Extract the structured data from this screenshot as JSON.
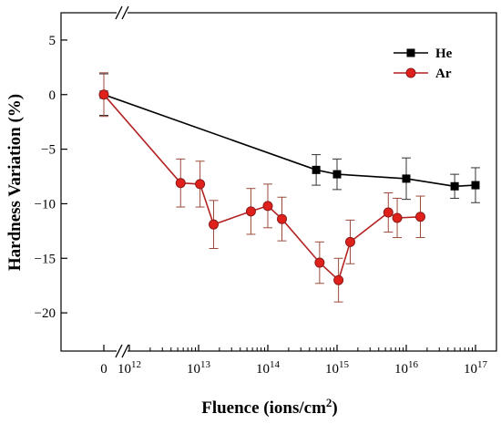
{
  "chart_data": {
    "type": "line",
    "xlabel": "Fluence (ions/cm",
    "xlabel_sup": "2",
    "xlabel_close": ")",
    "ylabel": "Hardness Variation (%)",
    "x_scale": "log10 with axis break between 0 and 10^12",
    "xlim": [
      1000000000000.0,
      1e+17
    ],
    "ylim": [
      -23.5,
      7.5
    ],
    "yticks": [
      5,
      0,
      -5,
      -10,
      -15,
      -20
    ],
    "ytick_labels": [
      "5",
      "0",
      "−5",
      "−10",
      "−15",
      "−20"
    ],
    "xticks": [
      {
        "label": "0",
        "exp": ""
      },
      {
        "label": "10",
        "exp": "12"
      },
      {
        "label": "10",
        "exp": "13"
      },
      {
        "label": "10",
        "exp": "14"
      },
      {
        "label": "10",
        "exp": "15"
      },
      {
        "label": "10",
        "exp": "16"
      },
      {
        "label": "10",
        "exp": "17"
      }
    ],
    "legend_position": "top-right",
    "series": [
      {
        "name": "He",
        "color": "#000000",
        "marker": "square",
        "points": [
          {
            "x": 0,
            "y": 0.0,
            "err": 1.9
          },
          {
            "x": 500000000000000.0,
            "y": -6.9,
            "err": 1.4
          },
          {
            "x": 1000000000000000.0,
            "y": -7.3,
            "err": 1.4
          },
          {
            "x": 1e+16,
            "y": -7.7,
            "err": 1.9
          },
          {
            "x": 5e+16,
            "y": -8.4,
            "err": 1.1
          },
          {
            "x": 1e+17,
            "y": -8.3,
            "err": 1.6
          }
        ]
      },
      {
        "name": "Ar",
        "color": "#b22222",
        "marker": "circle",
        "points": [
          {
            "x": 0,
            "y": 0.0,
            "err": 2.0
          },
          {
            "x": 5500000000000.0,
            "y": -8.1,
            "err": 2.2
          },
          {
            "x": 10500000000000.0,
            "y": -8.2,
            "err": 2.1
          },
          {
            "x": 16500000000000.0,
            "y": -11.9,
            "err": 2.2
          },
          {
            "x": 57000000000000.0,
            "y": -10.7,
            "err": 2.1
          },
          {
            "x": 100000000000000.0,
            "y": -10.2,
            "err": 2.0
          },
          {
            "x": 160000000000000.0,
            "y": -11.4,
            "err": 2.0
          },
          {
            "x": 560000000000000.0,
            "y": -15.4,
            "err": 1.9
          },
          {
            "x": 1050000000000000.0,
            "y": -17.0,
            "err": 2.0
          },
          {
            "x": 1550000000000000.0,
            "y": -13.5,
            "err": 2.0
          },
          {
            "x": 5500000000000000.0,
            "y": -10.8,
            "err": 1.8
          },
          {
            "x": 7400000000000000.0,
            "y": -11.3,
            "err": 1.8
          },
          {
            "x": 1.6e+16,
            "y": -11.2,
            "err": 1.9
          }
        ]
      }
    ]
  }
}
